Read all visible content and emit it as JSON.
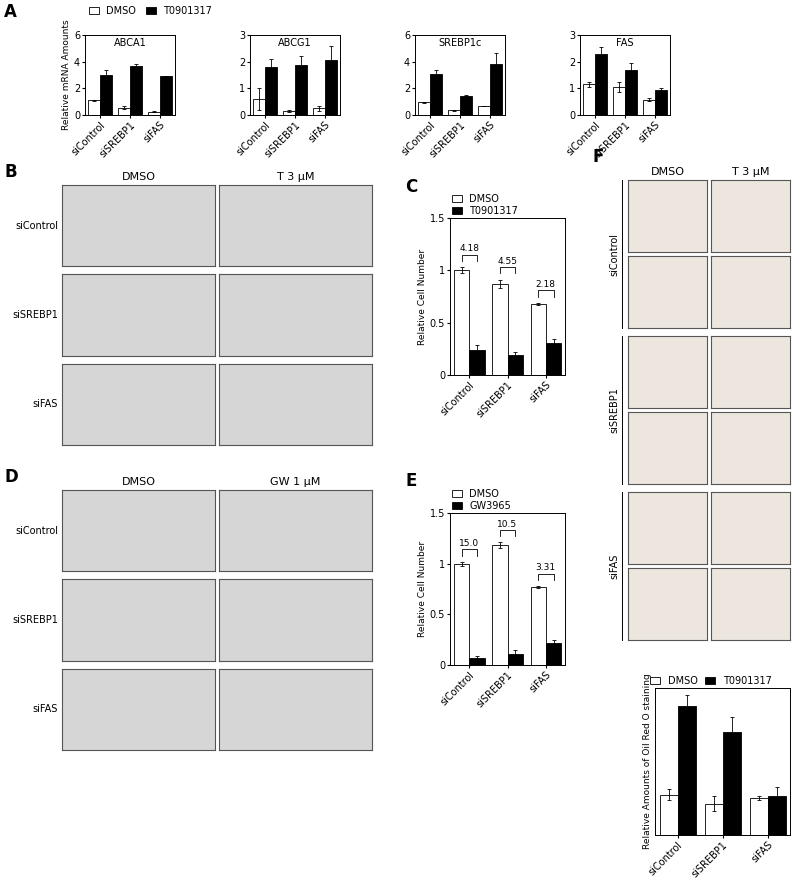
{
  "chart_data": [
    {
      "panel": "A",
      "type": "bar",
      "title": "ABCA1",
      "y_label": "Relative mRNA Amounts",
      "legend": "top",
      "categories": [
        "siControl",
        "siSREBP1",
        "siFAS"
      ],
      "series": [
        {
          "name": "DMSO",
          "color": "#ffffff",
          "values": [
            1.1,
            0.55,
            0.25
          ],
          "errors": [
            0.05,
            0.1,
            0.05
          ]
        },
        {
          "name": "T0901317",
          "color": "#000000",
          "values": [
            3.0,
            3.7,
            2.95
          ],
          "errors": [
            0.35,
            0.1,
            0.0
          ]
        }
      ],
      "ylim": [
        0,
        6
      ],
      "yticks": [
        0,
        2,
        4,
        6
      ]
    },
    {
      "panel": "A",
      "type": "bar",
      "title": "ABCG1",
      "categories": [
        "siControl",
        "siSREBP1",
        "siFAS"
      ],
      "series": [
        {
          "name": "DMSO",
          "color": "#ffffff",
          "values": [
            0.6,
            0.15,
            0.25
          ],
          "errors": [
            0.4,
            0.03,
            0.1
          ]
        },
        {
          "name": "T0901317",
          "color": "#000000",
          "values": [
            1.8,
            1.87,
            2.07
          ],
          "errors": [
            0.3,
            0.35,
            0.5
          ]
        }
      ],
      "ylim": [
        0,
        3
      ],
      "yticks": [
        0,
        1,
        2,
        3
      ]
    },
    {
      "panel": "A",
      "type": "bar",
      "title": "SREBP1c",
      "categories": [
        "siControl",
        "siSREBP1",
        "siFAS"
      ],
      "series": [
        {
          "name": "DMSO",
          "color": "#ffffff",
          "values": [
            0.95,
            0.35,
            0.65
          ],
          "errors": [
            0.05,
            0.05,
            0.0
          ]
        },
        {
          "name": "T0901317",
          "color": "#000000",
          "values": [
            3.05,
            1.45,
            3.85
          ],
          "errors": [
            0.3,
            0.05,
            0.8
          ]
        }
      ],
      "ylim": [
        0,
        6
      ],
      "yticks": [
        0,
        2,
        4,
        6
      ]
    },
    {
      "panel": "A",
      "type": "bar",
      "title": "FAS",
      "categories": [
        "siControl",
        "siSREBP1",
        "siFAS"
      ],
      "series": [
        {
          "name": "DMSO",
          "color": "#ffffff",
          "values": [
            1.15,
            1.05,
            0.58
          ],
          "errors": [
            0.1,
            0.2,
            0.07
          ]
        },
        {
          "name": "T0901317",
          "color": "#000000",
          "values": [
            2.3,
            1.7,
            0.93
          ],
          "errors": [
            0.25,
            0.25,
            0.07
          ]
        }
      ],
      "ylim": [
        0,
        3
      ],
      "yticks": [
        0,
        1,
        2,
        3
      ]
    },
    {
      "panel": "C",
      "type": "bar",
      "y_label": "Relative Cell Number",
      "legend": "top",
      "categories": [
        "siControl",
        "siSREBP1",
        "siFAS"
      ],
      "series": [
        {
          "name": "DMSO",
          "color": "#ffffff",
          "values": [
            1.0,
            0.87,
            0.68
          ],
          "errors": [
            0.03,
            0.04,
            0.01
          ]
        },
        {
          "name": "T0901317",
          "color": "#000000",
          "values": [
            0.24,
            0.19,
            0.31
          ],
          "errors": [
            0.05,
            0.03,
            0.03
          ]
        }
      ],
      "annotations": [
        "4.18",
        "4.55",
        "2.18"
      ],
      "ylim": [
        0,
        1.5
      ],
      "yticks": [
        0,
        0.5,
        1,
        1.5
      ]
    },
    {
      "panel": "E",
      "type": "bar",
      "y_label": "Relative Cell Number",
      "legend": "top",
      "categories": [
        "siControl",
        "siSREBP1",
        "siFAS"
      ],
      "series": [
        {
          "name": "DMSO",
          "color": "#ffffff",
          "values": [
            1.0,
            1.18,
            0.77
          ],
          "errors": [
            0.02,
            0.03,
            0.01
          ]
        },
        {
          "name": "GW3965",
          "color": "#000000",
          "values": [
            0.07,
            0.11,
            0.22
          ],
          "errors": [
            0.02,
            0.04,
            0.03
          ]
        }
      ],
      "annotations": [
        "15.0",
        "10.5",
        "3.31"
      ],
      "ylim": [
        0,
        1.5
      ],
      "yticks": [
        0,
        0.5,
        1,
        1.5
      ]
    },
    {
      "panel": "F",
      "type": "bar",
      "y_label": "Relative Amounts of Oil Red O staining",
      "legend": "top",
      "tick_labels": "x",
      "categories": [
        "siControl",
        "siSREBP1",
        "siFAS"
      ],
      "series": [
        {
          "name": "DMSO",
          "color": "#ffffff",
          "values": [
            1.1,
            0.85,
            1.0
          ],
          "errors": [
            0.15,
            0.2,
            0.05
          ]
        },
        {
          "name": "T0901317",
          "color": "#000000",
          "values": [
            3.5,
            2.8,
            1.05
          ],
          "errors": [
            0.3,
            0.4,
            0.25
          ]
        }
      ],
      "ylim": [
        0,
        4
      ],
      "yticks": []
    }
  ],
  "image_panels": [
    {
      "panel": "B",
      "columns": [
        "DMSO",
        "T 3 μM"
      ],
      "rows": [
        "siControl",
        "siSREBP1",
        "siFAS"
      ],
      "images_per_row": 1,
      "color": "#d6d6d6"
    },
    {
      "panel": "D",
      "columns": [
        "DMSO",
        "GW 1 μM"
      ],
      "rows": [
        "siControl",
        "siSREBP1",
        "siFAS"
      ],
      "images_per_row": 1,
      "color": "#d6d6d6"
    },
    {
      "panel": "F",
      "columns": [
        "DMSO",
        "T 3 μM"
      ],
      "rows": [
        "siControl",
        "siSREBP1",
        "siFAS"
      ],
      "images_per_row": 2,
      "color": "#ece6df"
    }
  ]
}
